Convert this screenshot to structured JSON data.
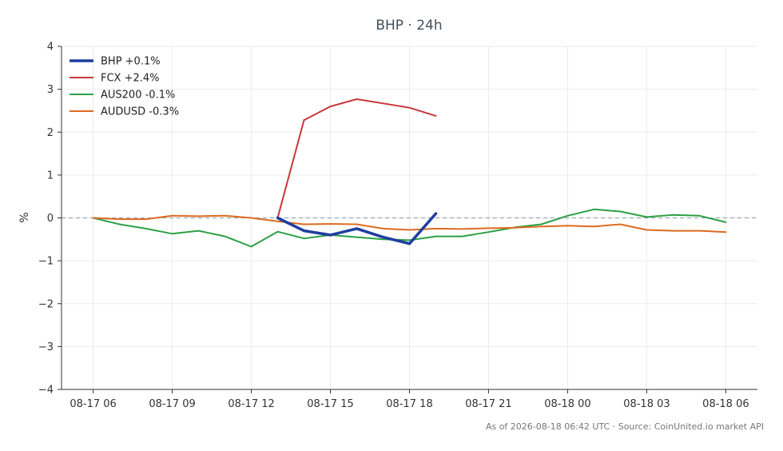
{
  "chart_data": {
    "type": "line",
    "title": "BHP · 24h",
    "xlabel": "",
    "ylabel": "%",
    "ylim": [
      -4,
      4
    ],
    "yticks": [
      4,
      3,
      2,
      1,
      0,
      -1,
      -2,
      -3,
      -4
    ],
    "ytick_labels": [
      "4",
      "3",
      "2",
      "1",
      "0",
      "−1",
      "−2",
      "−3",
      "−4"
    ],
    "x_start": "08-17 06",
    "x_interval_hours": 1,
    "xlim": [
      -1.2,
      25.2
    ],
    "xticks": [
      0,
      3,
      6,
      9,
      12,
      15,
      18,
      21,
      24
    ],
    "xtick_labels": [
      "08-17 06",
      "08-17 09",
      "08-17 12",
      "08-17 15",
      "08-17 18",
      "08-17 21",
      "08-18 00",
      "08-18 03",
      "08-18 06"
    ],
    "grid": true,
    "zero_line": true,
    "legend_position": "top-left",
    "series": [
      {
        "name": "BHP +0.1%",
        "color": "#1f3fa0",
        "width": 3.5,
        "x": [
          7,
          8,
          9,
          10,
          11,
          12,
          13
        ],
        "values": [
          0.0,
          -0.3,
          -0.4,
          -0.25,
          -0.45,
          -0.6,
          0.1
        ]
      },
      {
        "name": "FCX +2.4%",
        "color": "#c8373a",
        "width": 2,
        "x": [
          7,
          8,
          9,
          10,
          11,
          12,
          13
        ],
        "values": [
          0.0,
          2.28,
          2.6,
          2.77,
          2.67,
          2.57,
          2.38
        ]
      },
      {
        "name": "AUS200 -0.1%",
        "color": "#2ca046",
        "width": 2,
        "x": [
          0,
          1,
          2,
          3,
          4,
          5,
          6,
          7,
          8,
          9,
          10,
          11,
          12,
          13,
          14,
          15,
          16,
          17,
          18,
          19,
          20,
          21,
          22,
          23,
          24
        ],
        "values": [
          0.0,
          -0.15,
          -0.25,
          -0.37,
          -0.3,
          -0.43,
          -0.67,
          -0.32,
          -0.48,
          -0.4,
          -0.45,
          -0.5,
          -0.52,
          -0.43,
          -0.43,
          -0.33,
          -0.22,
          -0.15,
          0.05,
          0.2,
          0.15,
          0.02,
          0.07,
          0.05,
          -0.1
        ]
      },
      {
        "name": "AUDUSD -0.3%",
        "color": "#dd6b20",
        "width": 2,
        "x": [
          0,
          1,
          2,
          3,
          4,
          5,
          6,
          7,
          8,
          9,
          10,
          11,
          12,
          13,
          14,
          15,
          16,
          17,
          18,
          19,
          20,
          21,
          22,
          23,
          24
        ],
        "values": [
          0.0,
          -0.03,
          -0.03,
          0.05,
          0.04,
          0.05,
          0.0,
          -0.08,
          -0.15,
          -0.14,
          -0.15,
          -0.25,
          -0.28,
          -0.25,
          -0.26,
          -0.24,
          -0.23,
          -0.2,
          -0.18,
          -0.2,
          -0.15,
          -0.28,
          -0.3,
          -0.3,
          -0.33
        ]
      }
    ]
  },
  "footer": {
    "text": "As of 2026-08-18 06:42 UTC · Source: CoinUnited.io market API"
  }
}
